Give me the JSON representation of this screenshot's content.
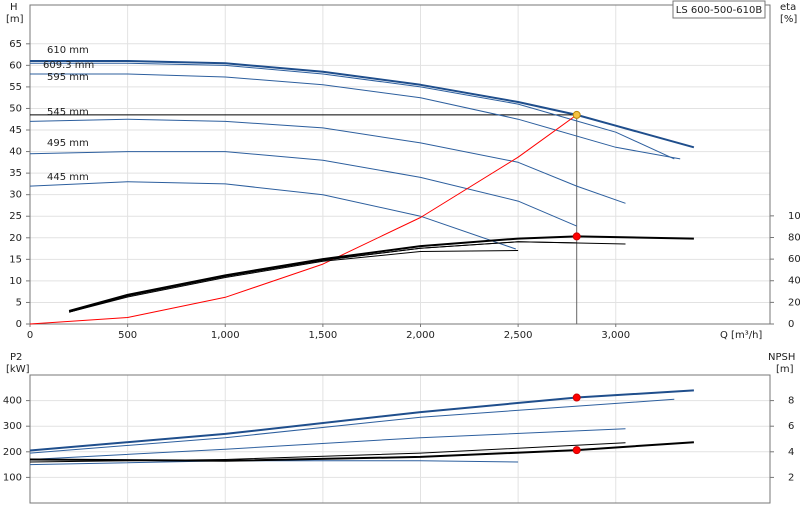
{
  "chart_data": [
    {
      "type": "line",
      "title": "LS 600-500-610B",
      "y_label": "H",
      "y_unit": "[m]",
      "y2_label": "eta",
      "y2_unit": "[%]",
      "x_label": "Q [m³/h]",
      "xlim": [
        0,
        3790
      ],
      "xticks": [
        0,
        500,
        {
          "value": 1000,
          "label": "1,000"
        },
        {
          "value": 1500,
          "label": "1,500"
        },
        {
          "value": 2000,
          "label": "2,000"
        },
        {
          "value": 2500,
          "label": "2,500"
        },
        {
          "value": 3000,
          "label": "3,000"
        }
      ],
      "ylim": [
        0,
        74
      ],
      "yticks": [
        0,
        5,
        10,
        15,
        20,
        25,
        30,
        35,
        40,
        45,
        50,
        55,
        60,
        65
      ],
      "y2lim": [
        0,
        295
      ],
      "y2ticks": [
        0,
        20,
        40,
        60,
        80,
        100
      ],
      "grid": true,
      "series": [
        {
          "name": "610 mm",
          "color": "#1f4e8c",
          "x": [
            0,
            500,
            1000,
            1500,
            2000,
            2500,
            2800,
            3000,
            3400
          ],
          "values": [
            61,
            61,
            60.5,
            58.5,
            55.5,
            51.5,
            48.5,
            46,
            41
          ]
        },
        {
          "name": "609.3 mm",
          "color": "#2d5f9e",
          "x": [
            0,
            500,
            1000,
            1500,
            2000,
            2500,
            3000,
            3300
          ],
          "values": [
            60.5,
            60.5,
            60,
            58,
            55,
            51,
            44.5,
            38.3
          ]
        },
        {
          "name": "595 mm",
          "color": "#2d5f9e",
          "x": [
            0,
            500,
            1000,
            1500,
            2000,
            2500,
            3000,
            3330
          ],
          "values": [
            58,
            58,
            57.3,
            55.5,
            52.5,
            47.5,
            41,
            38.3
          ]
        },
        {
          "name": "545 mm",
          "color": "#2d5f9e",
          "x": [
            0,
            500,
            1000,
            1500,
            2000,
            2500,
            2800,
            3050
          ],
          "values": [
            47,
            47.5,
            47,
            45.5,
            42,
            37.5,
            32,
            28
          ]
        },
        {
          "name": "495 mm",
          "color": "#2d5f9e",
          "x": [
            0,
            500,
            1000,
            1500,
            2000,
            2500,
            2800
          ],
          "values": [
            39.5,
            40,
            40,
            38,
            34,
            28.5,
            22.7
          ]
        },
        {
          "name": "445 mm",
          "color": "#2d5f9e",
          "x": [
            0,
            500,
            1000,
            1500,
            2000,
            2488
          ],
          "values": [
            32,
            33,
            32.5,
            30,
            25,
            17.4
          ]
        },
        {
          "color": "#ff0000",
          "x": [
            0,
            500,
            1000,
            1500,
            2000,
            2500,
            2800
          ],
          "values": [
            0,
            1.5,
            6.2,
            13.9,
            24.7,
            38.7,
            48.5
          ]
        },
        {
          "color": "#000000",
          "axis": "y2",
          "x": [
            200,
            500,
            1000,
            1500,
            2000,
            2500,
            2800,
            3400
          ],
          "values": [
            12,
            27,
            45,
            60,
            72,
            79,
            81,
            79
          ]
        },
        {
          "color": "#000000",
          "axis": "y2",
          "x": [
            200,
            500,
            1000,
            1500,
            2000,
            2500,
            3050
          ],
          "values": [
            11,
            26,
            44,
            59,
            70,
            76,
            74
          ]
        },
        {
          "color": "#000000",
          "axis": "y2",
          "x": [
            200,
            500,
            1000,
            1500,
            2000,
            2500,
            2800
          ],
          "values": [
            11,
            26,
            44,
            59,
            70,
            76,
            75
          ]
        },
        {
          "color": "#000000",
          "axis": "y2",
          "x": [
            200,
            500,
            1000,
            1500,
            2000,
            2500
          ],
          "values": [
            11,
            25,
            43,
            58,
            67,
            68
          ]
        }
      ],
      "markers": [
        {
          "x": 2800,
          "y": 48.5,
          "color": "#f5c242"
        },
        {
          "x": 2800,
          "y": 81,
          "axis": "y2",
          "color": "#ff0000"
        }
      ]
    },
    {
      "type": "line",
      "y_label": "P2",
      "y_unit": "[kW]",
      "y2_label": "NPSH",
      "y2_unit": "[m]",
      "ylim": [
        0,
        500
      ],
      "yticks": [
        100,
        200,
        300,
        400
      ],
      "y2lim": [
        0,
        10
      ],
      "y2ticks": [
        2,
        4,
        6,
        8
      ],
      "grid": true,
      "series": [
        {
          "color": "#1f4e8c",
          "x": [
            0,
            1000,
            2000,
            2800,
            3400
          ],
          "values": [
            205,
            270,
            355,
            412,
            440
          ]
        },
        {
          "color": "#2d5f9e",
          "x": [
            0,
            1000,
            2000,
            3300
          ],
          "values": [
            195,
            255,
            335,
            405
          ]
        },
        {
          "color": "#2d5f9e",
          "x": [
            0,
            1000,
            2000,
            3050
          ],
          "values": [
            170,
            210,
            255,
            290
          ]
        },
        {
          "color": "#2d5f9e",
          "x": [
            0,
            1000,
            2000,
            2500
          ],
          "values": [
            150,
            165,
            165,
            160
          ]
        },
        {
          "color": "#000000",
          "axis": "y2",
          "x": [
            0,
            1000,
            2000,
            2800,
            3400
          ],
          "values": [
            3.4,
            3.3,
            3.6,
            4.13,
            4.75
          ]
        },
        {
          "color": "#000000",
          "axis": "y2",
          "x": [
            0,
            1000,
            2000,
            3050
          ],
          "values": [
            3.2,
            3.4,
            3.9,
            4.7
          ]
        }
      ],
      "markers": [
        {
          "x": 2800,
          "y": 412,
          "color": "#ff0000"
        },
        {
          "x": 2800,
          "y": 4.13,
          "axis": "y2",
          "color": "#ff0000"
        }
      ]
    }
  ]
}
